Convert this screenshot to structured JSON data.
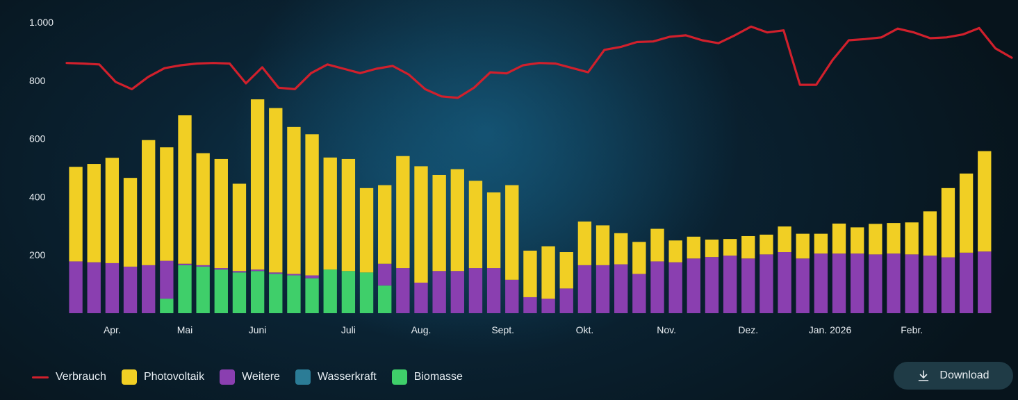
{
  "chart_data": {
    "type": "bar",
    "stacked": true,
    "ylim": [
      0,
      1000
    ],
    "y_ticks": [
      {
        "value": 200,
        "label": "200"
      },
      {
        "value": 400,
        "label": "400"
      },
      {
        "value": 600,
        "label": "600"
      },
      {
        "value": 800,
        "label": "800"
      },
      {
        "value": 1000,
        "label": "1.000"
      }
    ],
    "x_month_labels": [
      {
        "label": "Apr.",
        "bar_index": 2
      },
      {
        "label": "Mai",
        "bar_index": 6
      },
      {
        "label": "Juni",
        "bar_index": 10
      },
      {
        "label": "Juli",
        "bar_index": 15
      },
      {
        "label": "Aug.",
        "bar_index": 19
      },
      {
        "label": "Sept.",
        "bar_index": 23.5
      },
      {
        "label": "Okt.",
        "bar_index": 28
      },
      {
        "label": "Nov.",
        "bar_index": 32.5
      },
      {
        "label": "Dez.",
        "bar_index": 37
      },
      {
        "label": "Jan. 2026",
        "bar_index": 41.5
      },
      {
        "label": "Febr.",
        "bar_index": 46
      }
    ],
    "series": [
      {
        "name": "Biomasse",
        "color": "#3fcf6a",
        "values": [
          0,
          0,
          0,
          0,
          0,
          50,
          165,
          160,
          150,
          140,
          145,
          135,
          130,
          120,
          150,
          145,
          140,
          95,
          0,
          0,
          0,
          0,
          0,
          0,
          0,
          0,
          0,
          0,
          0,
          0,
          0,
          0,
          0,
          0,
          0,
          0,
          0,
          0,
          0,
          0,
          0,
          0,
          0,
          0,
          0,
          0,
          0,
          0,
          0,
          0,
          0,
          0
        ]
      },
      {
        "name": "Wasserkraft",
        "color": "#2b7c96",
        "values": [
          0,
          0,
          0,
          0,
          0,
          0,
          0,
          0,
          0,
          0,
          0,
          0,
          0,
          0,
          0,
          0,
          0,
          0,
          0,
          0,
          0,
          0,
          0,
          0,
          0,
          0,
          0,
          0,
          0,
          0,
          0,
          0,
          0,
          0,
          0,
          0,
          0,
          0,
          0,
          0,
          0,
          0,
          0,
          0,
          0,
          0,
          0,
          0,
          0,
          0,
          0,
          0
        ]
      },
      {
        "name": "Weitere",
        "color": "#8a3fb0",
        "values": [
          178,
          175,
          172,
          160,
          165,
          130,
          5,
          5,
          5,
          5,
          5,
          5,
          5,
          10,
          0,
          0,
          0,
          75,
          155,
          105,
          145,
          145,
          155,
          155,
          115,
          55,
          50,
          85,
          165,
          165,
          168,
          135,
          178,
          175,
          188,
          193,
          198,
          188,
          202,
          210,
          188,
          205,
          205,
          205,
          202,
          205,
          202,
          198,
          192,
          208,
          212,
          0
        ]
      },
      {
        "name": "Photovoltaik",
        "color": "#f1cf24",
        "values": [
          325,
          338,
          362,
          305,
          430,
          390,
          510,
          385,
          375,
          300,
          585,
          565,
          505,
          485,
          385,
          385,
          290,
          270,
          385,
          400,
          330,
          350,
          300,
          260,
          325,
          160,
          180,
          125,
          150,
          137,
          107,
          110,
          112,
          75,
          75,
          60,
          57,
          77,
          68,
          88,
          85,
          68,
          103,
          90,
          105,
          105,
          110,
          152,
          238,
          272,
          345,
          0
        ]
      }
    ],
    "bar_totals": [
      503,
      513,
      534,
      465,
      595,
      570,
      680,
      550,
      530,
      445,
      735,
      705,
      640,
      615,
      535,
      530,
      430,
      440,
      540,
      505,
      475,
      495,
      455,
      415,
      440,
      215,
      230,
      210,
      315,
      302,
      275,
      245,
      290,
      250,
      263,
      253,
      255,
      265,
      270,
      298,
      273,
      273,
      308,
      295,
      307,
      310,
      312,
      350,
      430,
      480,
      557,
      0
    ],
    "line": {
      "name": "Verbrauch",
      "color": "#d1202c",
      "values": [
        860,
        858,
        855,
        795,
        770,
        812,
        842,
        852,
        858,
        860,
        858,
        790,
        845,
        775,
        770,
        825,
        855,
        840,
        825,
        840,
        850,
        820,
        770,
        745,
        740,
        775,
        828,
        824,
        852,
        860,
        858,
        843,
        828,
        905,
        915,
        932,
        934,
        950,
        955,
        938,
        928,
        955,
        985,
        965,
        972,
        785,
        785,
        870,
        938,
        942,
        948,
        978,
        965,
        945,
        948,
        958,
        980,
        910,
        878
      ]
    }
  },
  "legend": [
    {
      "label": "Verbrauch",
      "kind": "line",
      "color": "#d1202c"
    },
    {
      "label": "Photovoltaik",
      "kind": "box",
      "color": "#f1cf24"
    },
    {
      "label": "Weitere",
      "kind": "box",
      "color": "#8a3fb0"
    },
    {
      "label": "Wasserkraft",
      "kind": "box",
      "color": "#2b7c96"
    },
    {
      "label": "Biomasse",
      "kind": "box",
      "color": "#3fcf6a"
    }
  ],
  "download": {
    "label": "Download",
    "icon": "download-icon"
  }
}
